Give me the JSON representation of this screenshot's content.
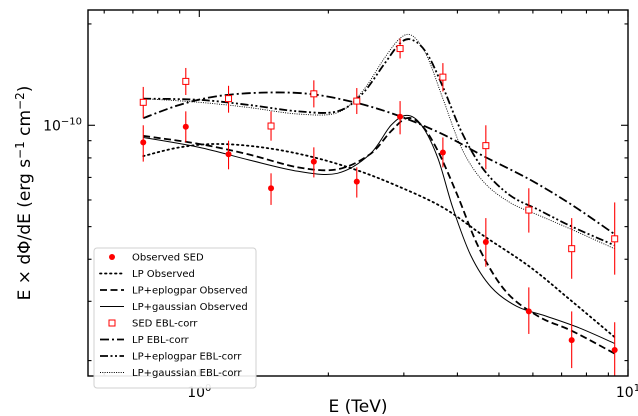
{
  "chart_data": {
    "type": "scatter",
    "title": "",
    "xlabel": "E (TeV)",
    "ylabel_parts": {
      "prefix": "E × dΦ/dE (erg s",
      "s_exp": "−1",
      "mid": " cm",
      "cm_exp": "−2",
      "suffix": ")"
    },
    "x_scale": "log",
    "y_scale": "log",
    "xlim": [
      0.55,
      10.0
    ],
    "ylim": [
      1.8e-11,
      2.2e-10
    ],
    "x_ticks": [
      {
        "value": 1.0,
        "label_base": "10",
        "label_exp": "0"
      },
      {
        "value": 10.0,
        "label_base": "10",
        "label_exp": "1"
      }
    ],
    "y_ticks": [
      {
        "value": 1e-10,
        "label_base": "10",
        "label_exp": "−10"
      }
    ],
    "legend": {
      "position": "lower-left",
      "entries": [
        {
          "label": "Observed SED",
          "style": "point-filled"
        },
        {
          "label": "LP Observed",
          "style": "dotted"
        },
        {
          "label": "LP+eplogpar Observed",
          "style": "dashed"
        },
        {
          "label": "LP+gaussian Observed",
          "style": "solid-thin"
        },
        {
          "label": "SED EBL-corr",
          "style": "point-open"
        },
        {
          "label": "LP EBL-corr",
          "style": "dashdot"
        },
        {
          "label": "LP+eplogpar EBL-corr",
          "style": "dashdotdot"
        },
        {
          "label": "LP+gaussian EBL-corr",
          "style": "dotted-fine"
        }
      ]
    },
    "colors": {
      "points": "#ff0000",
      "lines": "#000000"
    },
    "series": [
      {
        "name": "Observed SED",
        "kind": "points",
        "marker": "filled-circle",
        "x": [
          0.74,
          0.93,
          1.17,
          1.47,
          1.85,
          2.33,
          2.94,
          3.7,
          4.66,
          5.87,
          7.39,
          9.31
        ],
        "y": [
          8.9e-11,
          9.9e-11,
          8.2e-11,
          6.5e-11,
          7.8e-11,
          6.8e-11,
          1.06e-10,
          8.3e-11,
          4.5e-11,
          2.8e-11,
          2.3e-11,
          2.15e-11
        ],
        "y_lo": [
          7.8e-11,
          8.9e-11,
          7.4e-11,
          5.8e-11,
          7e-11,
          6.1e-11,
          9.4e-11,
          7.5e-11,
          3.8e-11,
          2.4e-11,
          1.9e-11,
          1.8e-11
        ],
        "y_hi": [
          1e-10,
          1.1e-10,
          9e-11,
          7.2e-11,
          8.6e-11,
          7.5e-11,
          1.18e-10,
          9.2e-11,
          5.3e-11,
          3.3e-11,
          2.8e-11,
          2.6e-11
        ]
      },
      {
        "name": "SED EBL-corr",
        "kind": "points",
        "marker": "open-square",
        "x": [
          0.74,
          0.93,
          1.17,
          1.47,
          1.85,
          2.33,
          2.94,
          3.7,
          4.66,
          5.87,
          7.39,
          9.31
        ],
        "y": [
          1.17e-10,
          1.35e-10,
          1.2e-10,
          9.95e-11,
          1.24e-10,
          1.18e-10,
          1.69e-10,
          1.39e-10,
          8.7e-11,
          5.6e-11,
          4.3e-11,
          4.6e-11
        ],
        "y_lo": [
          1.05e-10,
          1.23e-10,
          1.09e-10,
          9e-11,
          1.13e-10,
          1.08e-10,
          1.58e-10,
          1.26e-10,
          7.4e-11,
          4.8e-11,
          3.5e-11,
          3.6e-11
        ],
        "y_hi": [
          1.3e-10,
          1.48e-10,
          1.31e-10,
          1.1e-10,
          1.36e-10,
          1.29e-10,
          1.81e-10,
          1.53e-10,
          1e-10,
          6.5e-11,
          5.3e-11,
          5.9e-11
        ]
      },
      {
        "name": "LP Observed",
        "kind": "line",
        "style": "dotted",
        "x": [
          0.74,
          0.9,
          1.1,
          1.4,
          1.8,
          2.3,
          2.9,
          3.7,
          4.6,
          5.9,
          7.4,
          9.3
        ],
        "y": [
          8.1e-11,
          8.6e-11,
          8.8e-11,
          8.6e-11,
          8.1e-11,
          7.4e-11,
          6.6e-11,
          5.7e-11,
          4.7e-11,
          3.8e-11,
          3e-11,
          2.35e-11
        ]
      },
      {
        "name": "LP+eplogpar Observed",
        "kind": "line",
        "style": "dashed",
        "x": [
          0.74,
          1.0,
          1.3,
          1.7,
          2.1,
          2.5,
          2.8,
          3.05,
          3.3,
          3.6,
          4.0,
          4.5,
          5.2,
          6.2,
          7.4,
          9.3
        ],
        "y": [
          9.3e-11,
          8.8e-11,
          8.2e-11,
          7.5e-11,
          7.4e-11,
          8.2e-11,
          9.6e-11,
          1.05e-10,
          1e-10,
          8.4e-11,
          6.2e-11,
          4.3e-11,
          3.2e-11,
          2.7e-11,
          2.45e-11,
          2.1e-11
        ]
      },
      {
        "name": "LP+gaussian Observed",
        "kind": "line",
        "style": "solid-thin",
        "x": [
          0.74,
          1.0,
          1.3,
          1.7,
          2.1,
          2.5,
          2.8,
          3.05,
          3.3,
          3.6,
          3.9,
          4.3,
          4.8,
          5.5,
          6.5,
          7.7,
          9.3
        ],
        "y": [
          9.2e-11,
          8.6e-11,
          7.9e-11,
          7.3e-11,
          7.2e-11,
          8.2e-11,
          1e-10,
          1.07e-10,
          1e-10,
          8e-11,
          5.7e-11,
          4.1e-11,
          3.3e-11,
          2.9e-11,
          2.7e-11,
          2.5e-11,
          2.25e-11
        ]
      },
      {
        "name": "LP EBL-corr",
        "kind": "line",
        "style": "dashdot",
        "x": [
          0.74,
          0.9,
          1.1,
          1.4,
          1.8,
          2.3,
          2.9,
          3.7,
          4.6,
          5.9,
          7.4,
          9.3
        ],
        "y": [
          1.05e-10,
          1.15e-10,
          1.22e-10,
          1.25e-10,
          1.24e-10,
          1.17e-10,
          1.07e-10,
          9.4e-11,
          8.1e-11,
          6.9e-11,
          5.8e-11,
          4.75e-11
        ]
      },
      {
        "name": "LP+eplogpar EBL-corr",
        "kind": "line",
        "style": "dashdotdot",
        "x": [
          0.74,
          1.0,
          1.3,
          1.7,
          2.1,
          2.4,
          2.7,
          2.95,
          3.15,
          3.4,
          3.7,
          4.1,
          4.6,
          5.3,
          6.2,
          7.4,
          9.3
        ],
        "y": [
          1.2e-10,
          1.19e-10,
          1.15e-10,
          1.1e-10,
          1.1e-10,
          1.24e-10,
          1.52e-10,
          1.76e-10,
          1.79e-10,
          1.63e-10,
          1.3e-10,
          9.5e-11,
          7.4e-11,
          6.2e-11,
          5.6e-11,
          5e-11,
          4.4e-11
        ]
      },
      {
        "name": "LP+gaussian EBL-corr",
        "kind": "line",
        "style": "dotted-fine",
        "x": [
          0.74,
          1.0,
          1.3,
          1.7,
          2.1,
          2.4,
          2.7,
          2.95,
          3.15,
          3.4,
          3.7,
          4.1,
          4.6,
          5.3,
          6.2,
          7.4,
          9.3
        ],
        "y": [
          1.2e-10,
          1.17e-10,
          1.13e-10,
          1.08e-10,
          1.09e-10,
          1.26e-10,
          1.58e-10,
          1.82e-10,
          1.84e-10,
          1.6e-10,
          1.2e-10,
          8.5e-11,
          6.8e-11,
          5.9e-11,
          5.4e-11,
          4.9e-11,
          4.3e-11
        ]
      }
    ]
  }
}
